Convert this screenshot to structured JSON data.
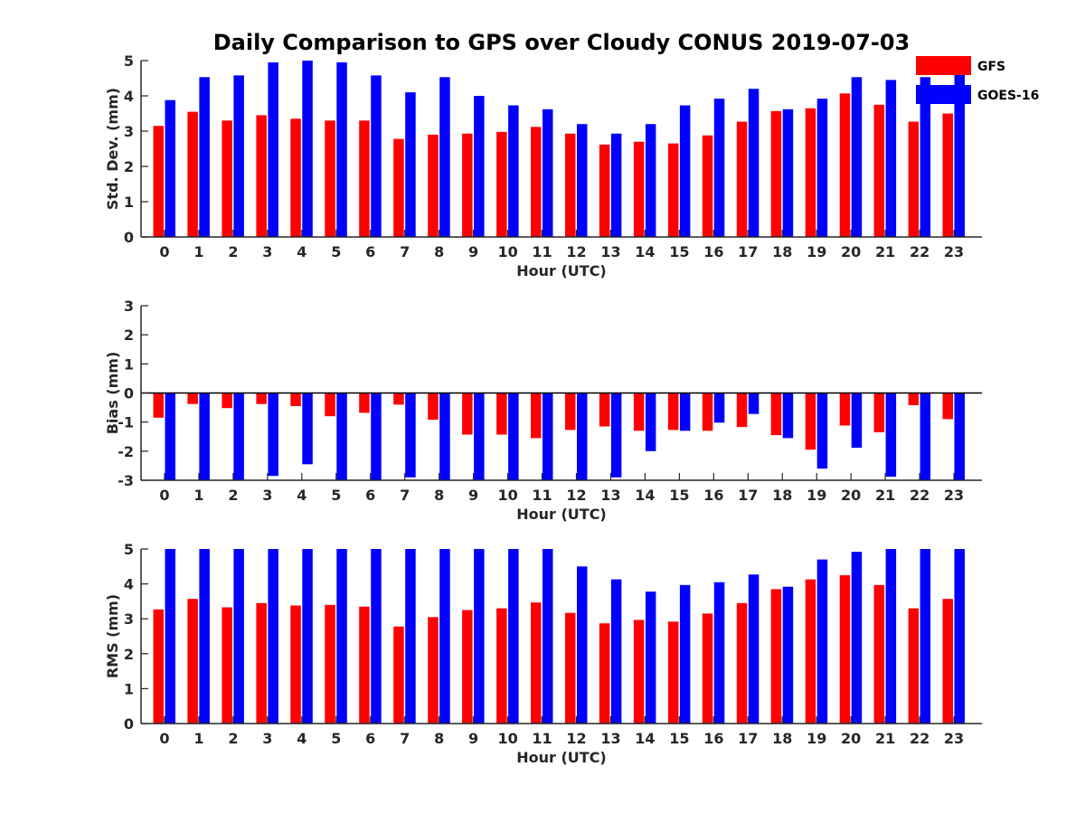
{
  "chart_data": [
    {
      "type": "bar",
      "title": "Daily Comparison to GPS over Cloudy CONUS 2019-07-03",
      "xlabel": "Hour (UTC)",
      "ylabel": "Std. Dev. (mm)",
      "ylim": [
        0,
        5
      ],
      "yticks": [
        "0",
        "1",
        "2",
        "3",
        "4",
        "5"
      ],
      "categories": [
        "0",
        "1",
        "2",
        "3",
        "4",
        "5",
        "6",
        "7",
        "8",
        "9",
        "10",
        "11",
        "12",
        "13",
        "14",
        "15",
        "16",
        "17",
        "18",
        "19",
        "20",
        "21",
        "22",
        "23"
      ],
      "legend_position": "top-right",
      "series": [
        {
          "name": "GFS",
          "color": "#ff0000",
          "values": [
            3.15,
            3.55,
            3.3,
            3.45,
            3.35,
            3.3,
            3.3,
            2.78,
            2.9,
            2.93,
            2.98,
            3.12,
            2.93,
            2.62,
            2.7,
            2.65,
            2.88,
            3.27,
            3.57,
            3.65,
            4.07,
            3.75,
            3.27,
            3.5
          ]
        },
        {
          "name": "GOES-16",
          "color": "#0000ff",
          "values": [
            3.88,
            4.53,
            4.58,
            4.95,
            5.0,
            4.95,
            4.58,
            4.1,
            4.53,
            4.0,
            3.73,
            3.62,
            3.2,
            2.93,
            3.2,
            3.73,
            3.92,
            4.2,
            3.62,
            3.92,
            4.53,
            4.45,
            4.53,
            4.6
          ]
        }
      ]
    },
    {
      "type": "bar",
      "xlabel": "Hour (UTC)",
      "ylabel": "Bias (mm)",
      "ylim": [
        -3,
        3
      ],
      "yticks": [
        "-3",
        "-2",
        "-1",
        "0",
        "1",
        "2",
        "3"
      ],
      "categories": [
        "0",
        "1",
        "2",
        "3",
        "4",
        "5",
        "6",
        "7",
        "8",
        "9",
        "10",
        "11",
        "12",
        "13",
        "14",
        "15",
        "16",
        "17",
        "18",
        "19",
        "20",
        "21",
        "22",
        "23"
      ],
      "series": [
        {
          "name": "GFS",
          "color": "#ff0000",
          "values": [
            -0.85,
            -0.38,
            -0.52,
            -0.38,
            -0.45,
            -0.8,
            -0.68,
            -0.4,
            -0.92,
            -1.43,
            -1.43,
            -1.55,
            -1.27,
            -1.15,
            -1.3,
            -1.27,
            -1.3,
            -1.17,
            -1.45,
            -1.95,
            -1.12,
            -1.35,
            -0.42,
            -0.9
          ]
        },
        {
          "name": "GOES-16",
          "color": "#0000ff",
          "values": [
            -3.0,
            -3.0,
            -3.0,
            -2.85,
            -2.45,
            -3.0,
            -3.0,
            -2.9,
            -3.0,
            -3.0,
            -3.0,
            -3.0,
            -3.0,
            -2.9,
            -2.0,
            -1.3,
            -1.02,
            -0.72,
            -1.55,
            -2.6,
            -1.88,
            -2.88,
            -3.0,
            -3.0
          ]
        }
      ]
    },
    {
      "type": "bar",
      "xlabel": "Hour (UTC)",
      "ylabel": "RMS (mm)",
      "ylim": [
        0,
        5
      ],
      "yticks": [
        "0",
        "1",
        "2",
        "3",
        "4",
        "5"
      ],
      "categories": [
        "0",
        "1",
        "2",
        "3",
        "4",
        "5",
        "6",
        "7",
        "8",
        "9",
        "10",
        "11",
        "12",
        "13",
        "14",
        "15",
        "16",
        "17",
        "18",
        "19",
        "20",
        "21",
        "22",
        "23"
      ],
      "series": [
        {
          "name": "GFS",
          "color": "#ff0000",
          "values": [
            3.27,
            3.57,
            3.33,
            3.45,
            3.38,
            3.4,
            3.35,
            2.78,
            3.05,
            3.25,
            3.3,
            3.47,
            3.17,
            2.87,
            2.97,
            2.92,
            3.15,
            3.45,
            3.85,
            4.13,
            4.25,
            3.97,
            3.3,
            3.57
          ]
        },
        {
          "name": "GOES-16",
          "color": "#0000ff",
          "values": [
            5.0,
            5.0,
            5.0,
            5.0,
            5.0,
            5.0,
            5.0,
            5.0,
            5.0,
            5.0,
            5.0,
            5.0,
            4.5,
            4.13,
            3.78,
            3.97,
            4.05,
            4.27,
            3.92,
            4.7,
            4.92,
            5.0,
            5.0,
            5.0
          ]
        }
      ]
    }
  ]
}
